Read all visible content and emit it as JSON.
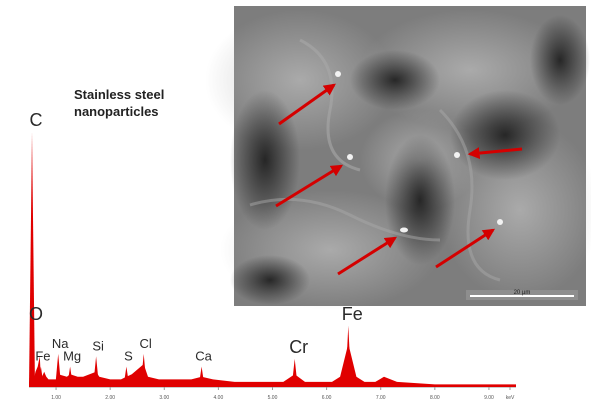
{
  "figure": {
    "caption_line1": "Stainless steel",
    "caption_line2": "nanoparticles",
    "scale_bar_label": "20 µm"
  },
  "chart_data": {
    "type": "area",
    "xlabel": "keV",
    "ylabel": "",
    "xlim": [
      0.5,
      9.5
    ],
    "x_ticks": [
      "1.00",
      "2.00",
      "3.00",
      "4.00",
      "5.00",
      "6.00",
      "7.00",
      "8.00",
      "9.00",
      "keV"
    ],
    "series": [
      {
        "color": "#e00000",
        "x": [
          0.5,
          0.58,
          0.6,
          0.62,
          0.66,
          0.7,
          0.72,
          0.74,
          0.78,
          0.8,
          0.82,
          0.86,
          0.9,
          1.0,
          1.04,
          1.2,
          1.26,
          1.4,
          1.5,
          1.74,
          1.8,
          2.0,
          2.2,
          2.3,
          2.4,
          2.62,
          2.7,
          2.9,
          3.2,
          3.5,
          3.69,
          3.9,
          4.3,
          4.8,
          5.2,
          5.41,
          5.6,
          5.9,
          6.1,
          6.25,
          6.4,
          6.55,
          6.7,
          6.9,
          7.06,
          7.3,
          8.0,
          9.5
        ],
        "y": [
          2,
          3,
          4,
          6,
          8,
          12,
          3,
          4,
          6,
          5,
          4,
          3,
          3,
          3,
          5,
          4,
          5,
          4,
          4,
          6,
          4,
          3,
          3,
          4,
          5,
          9,
          4,
          3,
          3,
          3,
          4,
          3,
          2,
          2,
          2,
          5,
          2,
          2,
          2,
          4,
          17,
          4,
          2,
          2,
          4,
          2,
          1,
          1
        ]
      }
    ],
    "peak_labels": [
      {
        "label": "C",
        "x": 0.28,
        "y": 100
      },
      {
        "label": "O",
        "x": 0.53,
        "y": 24
      },
      {
        "label": "Na",
        "x": 1.04,
        "y": 13
      },
      {
        "label": "Fe",
        "x": 0.72,
        "y": 8
      },
      {
        "label": "Mg",
        "x": 1.26,
        "y": 8
      },
      {
        "label": "Si",
        "x": 1.74,
        "y": 12
      },
      {
        "label": "S",
        "x": 2.3,
        "y": 8
      },
      {
        "label": "Cl",
        "x": 2.62,
        "y": 13
      },
      {
        "label": "Ca",
        "x": 3.69,
        "y": 8
      },
      {
        "label": "Cr",
        "x": 5.41,
        "y": 11
      },
      {
        "label": "Fe",
        "x": 6.4,
        "y": 24
      }
    ]
  }
}
